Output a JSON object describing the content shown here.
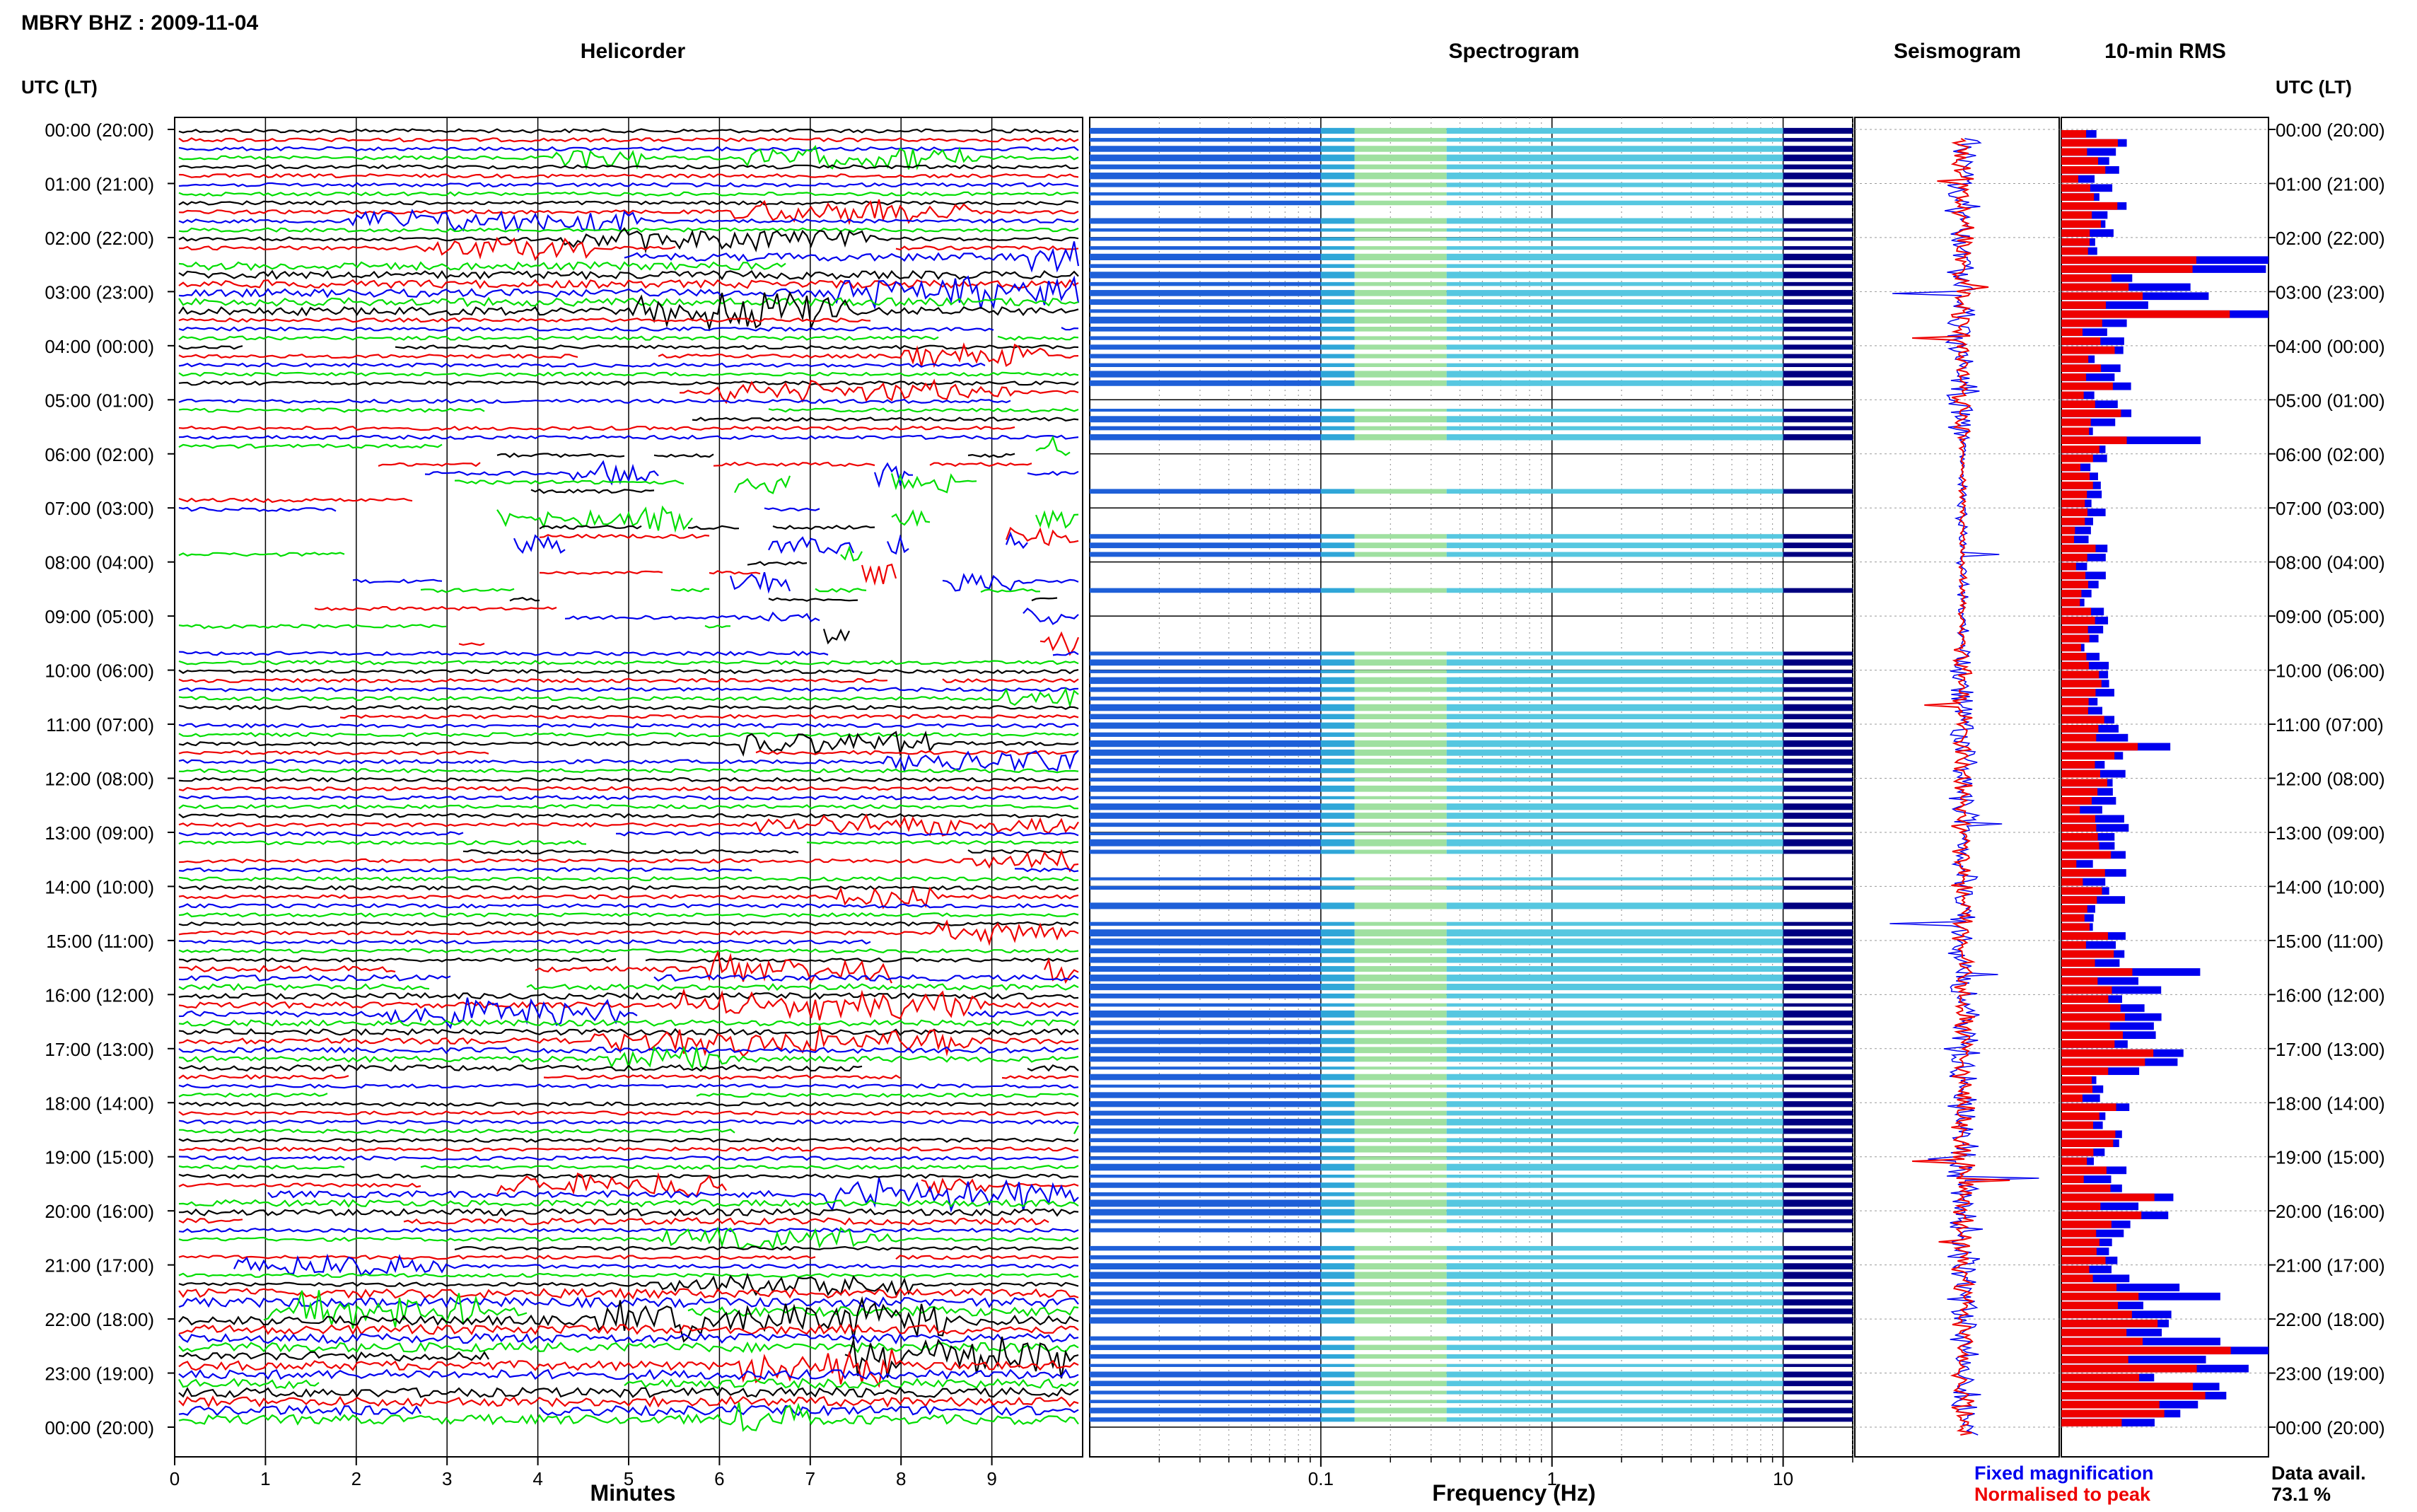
{
  "header": {
    "station": "MBRY BHZ : 2009-11-04"
  },
  "panels": {
    "helicorder": "Helicorder",
    "spectrogram": "Spectrogram",
    "seismogram": "Seismogram",
    "rms": "10-min RMS"
  },
  "axis_titles": {
    "left_time": "UTC (LT)",
    "right_time": "UTC (LT)",
    "helicorder_x": "Minutes",
    "spectrogram_x": "Frequency (Hz)"
  },
  "legend": {
    "fixed": "Fixed magnification",
    "normalised": "Normalised to peak",
    "fixed_color": "#0000ee",
    "normalised_color": "#ee0000"
  },
  "data_avail": {
    "label": "Data avail.",
    "value": "73.1 %"
  },
  "colors": {
    "trace_cycle": [
      "#000000",
      "#ee0000",
      "#0000ee",
      "#00dd00"
    ],
    "spectrogram_low": "#000080",
    "spectrogram_high": "#ffff66"
  },
  "chart_data": [
    {
      "type": "line",
      "name": "helicorder",
      "xlabel": "Minutes",
      "xlim": [
        0,
        10
      ],
      "x_ticks": [
        "0",
        "1",
        "2",
        "3",
        "4",
        "5",
        "6",
        "7",
        "8",
        "9"
      ],
      "y_ticks": [
        "00:00 (20:00)",
        "01:00 (21:00)",
        "02:00 (22:00)",
        "03:00 (23:00)",
        "04:00 (00:00)",
        "05:00 (01:00)",
        "06:00 (02:00)",
        "07:00 (03:00)",
        "08:00 (04:00)",
        "09:00 (05:00)",
        "10:00 (06:00)",
        "11:00 (07:00)",
        "12:00 (08:00)",
        "13:00 (09:00)",
        "14:00 (10:00)",
        "15:00 (11:00)",
        "16:00 (12:00)",
        "17:00 (13:00)",
        "18:00 (14:00)",
        "19:00 (15:00)",
        "20:00 (16:00)",
        "21:00 (17:00)",
        "22:00 (18:00)",
        "23:00 (19:00)",
        "00:00 (20:00)"
      ]
    },
    {
      "type": "heatmap",
      "name": "spectrogram",
      "xlabel": "Frequency (Hz)",
      "x_scale": "log",
      "xlim": [
        0.01,
        20
      ],
      "x_ticks": [
        "0.1",
        "1",
        "10"
      ]
    },
    {
      "type": "line",
      "name": "seismogram"
    },
    {
      "type": "bar",
      "name": "10-min RMS"
    }
  ]
}
